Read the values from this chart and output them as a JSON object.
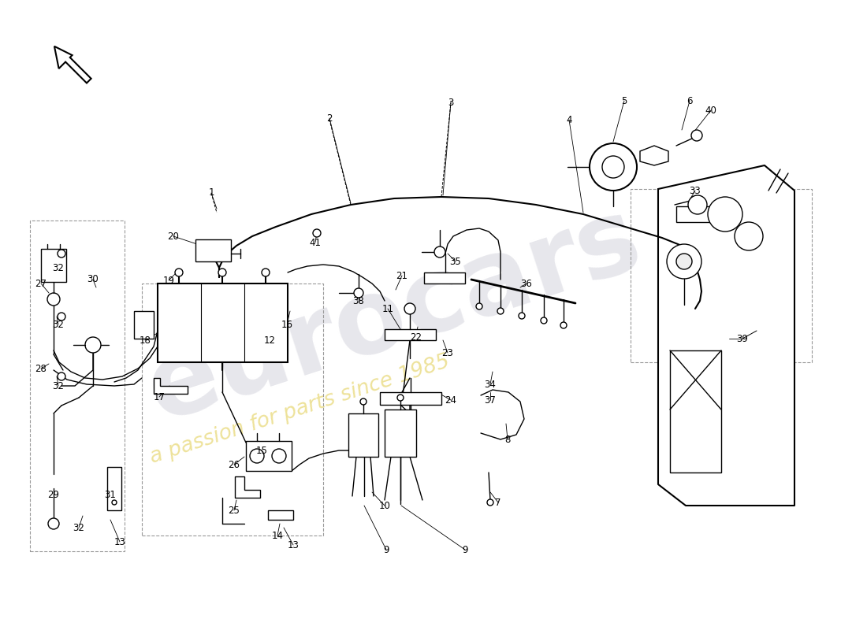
{
  "background_color": "#ffffff",
  "line_color": "#000000",
  "dashed_color": "#999999",
  "wm1_color": "#d0d0da",
  "wm2_color": "#e8d878",
  "figsize": [
    11.0,
    8.0
  ],
  "dpi": 100,
  "parts": [
    [
      "1",
      268,
      555
    ],
    [
      "2",
      418,
      650
    ],
    [
      "3",
      572,
      670
    ],
    [
      "4",
      722,
      648
    ],
    [
      "5",
      792,
      672
    ],
    [
      "6",
      875,
      672
    ],
    [
      "7",
      632,
      162
    ],
    [
      "8",
      644,
      242
    ],
    [
      "9",
      490,
      102
    ],
    [
      "9",
      590,
      102
    ],
    [
      "10",
      488,
      158
    ],
    [
      "11",
      492,
      408
    ],
    [
      "12",
      342,
      368
    ],
    [
      "13",
      152,
      112
    ],
    [
      "13",
      372,
      108
    ],
    [
      "14",
      352,
      120
    ],
    [
      "15",
      332,
      228
    ],
    [
      "16",
      364,
      388
    ],
    [
      "17",
      202,
      296
    ],
    [
      "18",
      184,
      368
    ],
    [
      "19",
      214,
      444
    ],
    [
      "20",
      220,
      500
    ],
    [
      "21",
      510,
      450
    ],
    [
      "22",
      528,
      372
    ],
    [
      "23",
      568,
      352
    ],
    [
      "24",
      572,
      292
    ],
    [
      "25",
      297,
      152
    ],
    [
      "26",
      297,
      210
    ],
    [
      "27",
      52,
      440
    ],
    [
      "28",
      52,
      332
    ],
    [
      "29",
      68,
      172
    ],
    [
      "30",
      118,
      445
    ],
    [
      "31",
      140,
      172
    ],
    [
      "32",
      74,
      460
    ],
    [
      "32",
      74,
      388
    ],
    [
      "32",
      74,
      310
    ],
    [
      "32",
      100,
      130
    ],
    [
      "33",
      882,
      558
    ],
    [
      "34",
      622,
      312
    ],
    [
      "35",
      578,
      468
    ],
    [
      "36",
      668,
      440
    ],
    [
      "37",
      622,
      292
    ],
    [
      "38",
      455,
      418
    ],
    [
      "39",
      942,
      370
    ],
    [
      "40",
      902,
      660
    ],
    [
      "41",
      400,
      492
    ]
  ]
}
